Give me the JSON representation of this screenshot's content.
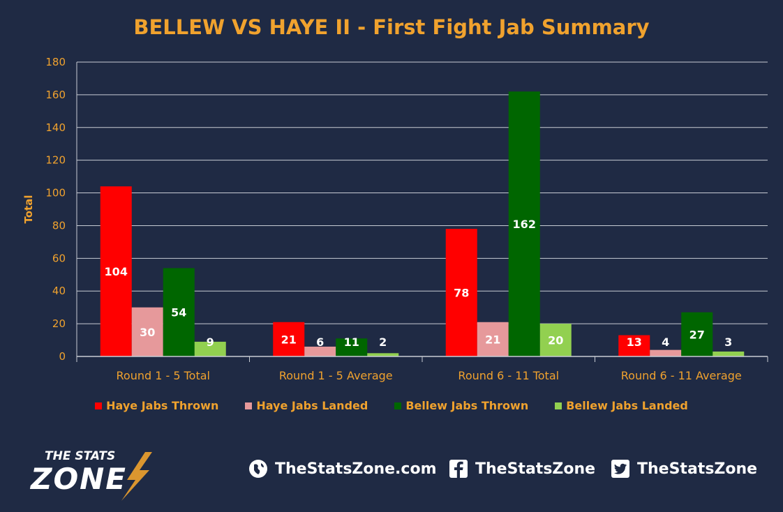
{
  "chart_data": {
    "type": "bar",
    "title": "BELLEW VS HAYE II - First Fight Jab Summary",
    "ylabel": "Total",
    "ylim": [
      0,
      180
    ],
    "yticks": [
      0,
      20,
      40,
      60,
      80,
      100,
      120,
      140,
      160,
      180
    ],
    "grid": true,
    "legend_position": "bottom",
    "categories": [
      "Round 1 - 5 Total",
      "Round 1 - 5 Average",
      "Round 6 - 11 Total",
      "Round 6 - 11 Average"
    ],
    "series": [
      {
        "name": "Haye Jabs Thrown",
        "color": "#ff0000",
        "values": [
          104,
          21,
          78,
          13
        ]
      },
      {
        "name": "Haye Jabs Landed",
        "color": "#e6999b",
        "values": [
          30,
          6,
          21,
          4
        ]
      },
      {
        "name": "Bellew Jabs Thrown",
        "color": "#006600",
        "values": [
          54,
          11,
          162,
          27
        ]
      },
      {
        "name": "Bellew Jabs Landed",
        "color": "#92d050",
        "values": [
          9,
          2,
          20,
          3
        ]
      }
    ]
  },
  "colors": {
    "background": "#1f2a44",
    "accent": "#f0a22e",
    "grid": "#c8ccd4"
  },
  "footer": {
    "logo_top": "THE STATS",
    "logo_bottom": "ZONE",
    "website": "TheStatsZone.com",
    "facebook": "TheStatsZone",
    "twitter": "TheStatsZone",
    "icons": [
      "globe-icon",
      "facebook-icon",
      "twitter-icon"
    ]
  }
}
